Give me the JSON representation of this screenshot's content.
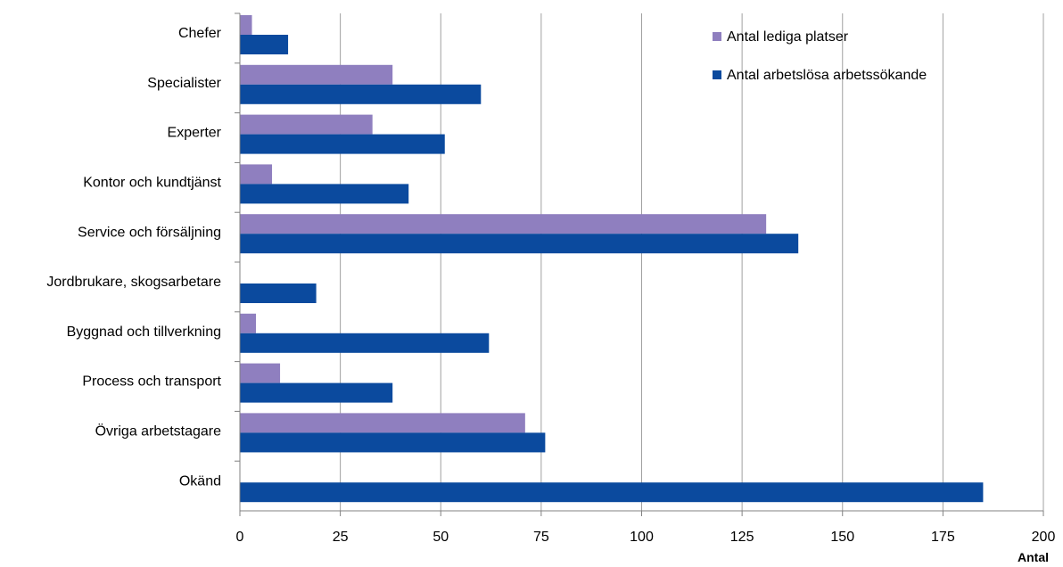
{
  "chart_data": {
    "type": "bar",
    "orientation": "horizontal",
    "categories": [
      "Chefer",
      "Specialister",
      "Experter",
      "Kontor och kundtjänst",
      "Service och försäljning",
      "Jordbrukare, skogsarbetare",
      "Byggnad och tillverkning",
      "Process och transport",
      "Övriga arbetstagare",
      "Okänd"
    ],
    "series": [
      {
        "name": "Antal lediga platser",
        "color": "#8f7fbf",
        "values": [
          3,
          38,
          33,
          8,
          131,
          0,
          4,
          10,
          71,
          0
        ]
      },
      {
        "name": "Antal arbetslösa arbetssökande",
        "color": "#0b4a9e",
        "values": [
          12,
          60,
          51,
          42,
          139,
          19,
          62,
          38,
          76,
          185
        ]
      }
    ],
    "xlim": [
      0,
      200
    ],
    "xticks": [
      "0",
      "25",
      "50",
      "75",
      "100",
      "125",
      "150",
      "175",
      "200"
    ],
    "xlabel": "Antal",
    "ylabel": "",
    "grid": "vertical",
    "legend_position": "top-right"
  }
}
